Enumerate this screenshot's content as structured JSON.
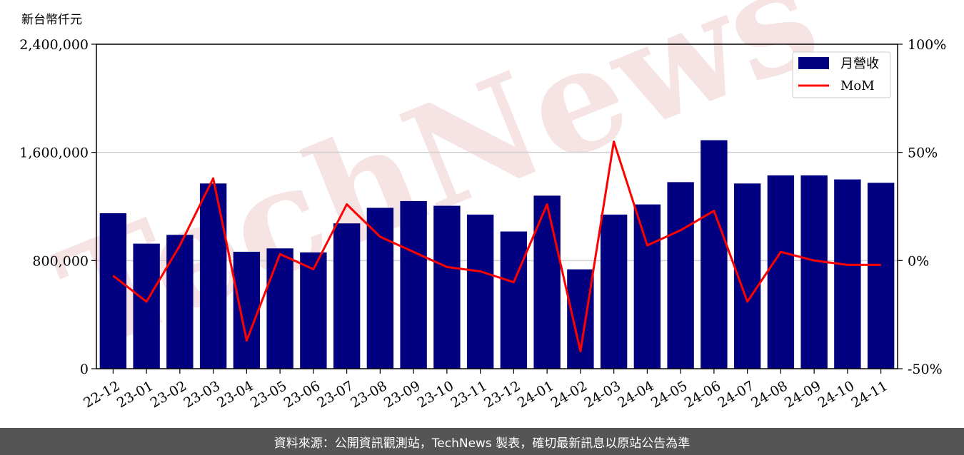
{
  "chart_data": {
    "type": "bar",
    "unit_label": "新台幣仟元",
    "categories": [
      "22-12",
      "23-01",
      "23-02",
      "23-03",
      "23-04",
      "23-05",
      "23-06",
      "23-07",
      "23-08",
      "23-09",
      "23-10",
      "23-11",
      "23-12",
      "24-01",
      "24-02",
      "24-03",
      "24-04",
      "24-05",
      "24-06",
      "24-07",
      "24-08",
      "24-09",
      "24-10",
      "24-11"
    ],
    "series": [
      {
        "name": "月營收",
        "type": "bar",
        "axis": "left",
        "color": "#000080",
        "values": [
          1150000,
          925000,
          990000,
          1370000,
          865000,
          890000,
          860000,
          1075000,
          1190000,
          1240000,
          1205000,
          1140000,
          1015000,
          1280000,
          735000,
          1140000,
          1215000,
          1380000,
          1690000,
          1370000,
          1430000,
          1430000,
          1400000,
          1375000
        ]
      },
      {
        "name": "MoM",
        "type": "line",
        "axis": "right",
        "color": "#ff0000",
        "values": [
          -7,
          -19,
          7,
          38,
          -37,
          3,
          -4,
          26,
          11,
          4,
          -3,
          -5,
          -10,
          26,
          -42,
          55,
          7,
          14,
          23,
          -19,
          4,
          0,
          -2,
          -2
        ]
      }
    ],
    "left_axis": {
      "ylim": [
        0,
        2400000
      ],
      "ticks": [
        "0",
        "800,000",
        "1,600,000",
        "2,400,000"
      ]
    },
    "right_axis": {
      "ylim": [
        -50,
        100
      ],
      "ticks": [
        "-50%",
        "0%",
        "50%",
        "100%"
      ]
    },
    "grid": "horizontal",
    "legend_position": "top-right",
    "watermark": "TechNews"
  },
  "footer": {
    "text": "資料來源：公開資訊觀測站，TechNews 製表，確切最新訊息以原站公告為準"
  },
  "colors": {
    "bar": "#000080",
    "line": "#ff0000",
    "footer_bg": "#555555",
    "watermark": "#f3dada"
  }
}
